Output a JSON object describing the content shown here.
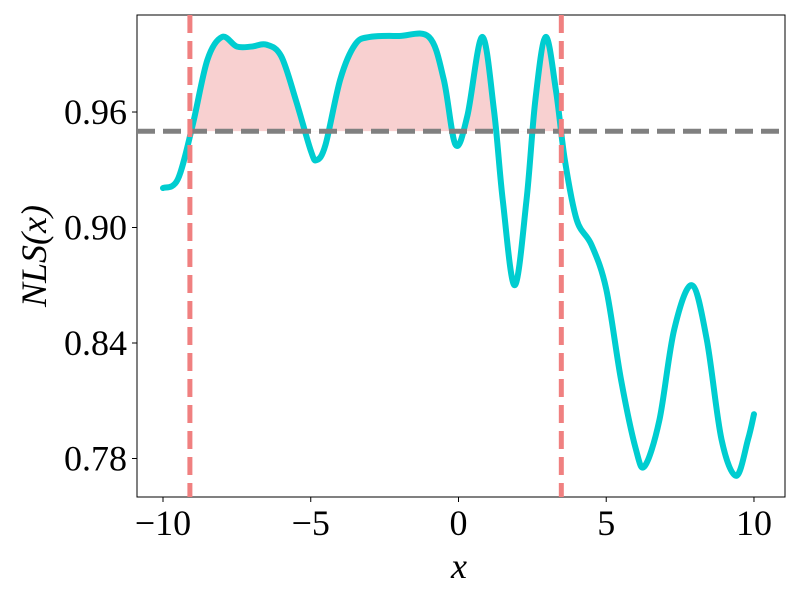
{
  "chart_data": {
    "type": "line",
    "x_label": "x",
    "y_label": "NLS(x)",
    "xlim": [
      -10.88,
      11.05
    ],
    "ylim": [
      0.76,
      1.0104
    ],
    "xticks": [
      {
        "value": -10,
        "label": "−10"
      },
      {
        "value": -5,
        "label": "−5"
      },
      0,
      5,
      10
    ],
    "yticks": [
      0.78,
      0.84,
      {
        "value": 0.9,
        "label": "0.90"
      },
      0.96
    ],
    "threshold": 0.95,
    "threshold_color": "#808080",
    "vlines": [
      -9.09,
      3.48
    ],
    "vline_color": "#f08080",
    "fill_color": "#f8d0d0",
    "series": [
      {
        "color": "#00cdd0",
        "x": [
          -10,
          -9.5,
          -9,
          -8.5,
          -8,
          -7.5,
          -7,
          -6.5,
          -6,
          -5.5,
          -5,
          -4.8,
          -4.5,
          -4,
          -3.5,
          -3,
          -2,
          -1,
          -0.5,
          -0.1,
          0.3,
          0.8,
          1.2,
          1.5,
          1.9,
          2.3,
          2.6,
          2.95,
          3.3,
          3.6,
          4,
          4.5,
          5,
          5.5,
          6,
          6.3,
          6.8,
          7.3,
          7.9,
          8.4,
          8.9,
          9.4,
          9.8,
          10
        ],
        "values": [
          0.9205,
          0.925,
          0.953,
          0.987,
          0.999,
          0.994,
          0.994,
          0.995,
          0.989,
          0.966,
          0.94,
          0.935,
          0.943,
          0.977,
          0.995,
          0.999,
          0.9995,
          0.999,
          0.977,
          0.943,
          0.958,
          0.999,
          0.961,
          0.914,
          0.87,
          0.914,
          0.966,
          0.999,
          0.971,
          0.935,
          0.904,
          0.891,
          0.868,
          0.821,
          0.785,
          0.776,
          0.8,
          0.847,
          0.87,
          0.842,
          0.79,
          0.771,
          0.79,
          0.803
        ]
      }
    ]
  }
}
